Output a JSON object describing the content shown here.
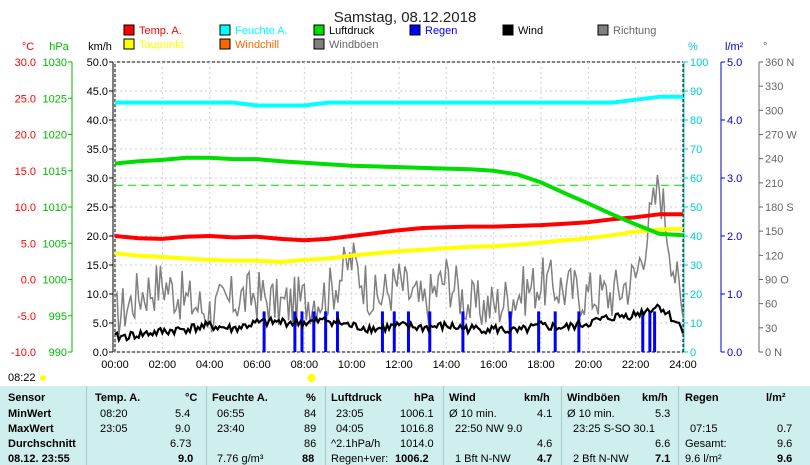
{
  "chart_data": {
    "type": "line",
    "title": "Samstag, 08.12.2018",
    "x_ticks": [
      "00:00",
      "02:00",
      "04:00",
      "06:00",
      "08:00",
      "10:00",
      "12:00",
      "14:00",
      "16:00",
      "18:00",
      "20:00",
      "22:00",
      "24:00"
    ],
    "xlim": [
      0,
      24
    ],
    "left_axes": [
      {
        "unit": "°C",
        "color": "#ff0000",
        "ticks": [
          "30.0",
          "25.0",
          "20.0",
          "15.0",
          "10.0",
          "5.0",
          "0.0",
          "-5.0",
          "-10.0"
        ],
        "range": [
          -10,
          30
        ]
      },
      {
        "unit": "hPa",
        "color": "#00bb00",
        "ticks": [
          "1030",
          "1025",
          "1020",
          "1015",
          "1010",
          "1005",
          "1000",
          "995",
          "990"
        ],
        "range": [
          990,
          1030
        ]
      },
      {
        "unit": "km/h",
        "color": "#000000",
        "ticks": [
          "50.0",
          "45.0",
          "40.0",
          "35.0",
          "30.0",
          "25.0",
          "20.0",
          "15.0",
          "10.0",
          "5.0",
          "0.0"
        ],
        "range": [
          0,
          50
        ]
      }
    ],
    "right_axes": [
      {
        "unit": "%",
        "color": "#00cccc",
        "ticks": [
          "100",
          "90",
          "80",
          "70",
          "60",
          "50",
          "40",
          "30",
          "20",
          "10",
          "0"
        ],
        "range": [
          0,
          100
        ]
      },
      {
        "unit": "l/m²",
        "color": "#0000cc",
        "ticks": [
          "5.0",
          "4.0",
          "3.0",
          "2.0",
          "1.0",
          "0.0"
        ],
        "range": [
          0,
          5
        ]
      },
      {
        "unit": "°",
        "color": "#666666",
        "ticks": [
          "360 N",
          "330",
          "300",
          "270 W",
          "240",
          "210",
          "180 S",
          "150",
          "120",
          "90 O",
          "60",
          "30",
          "0 N"
        ],
        "range": [
          0,
          360
        ]
      }
    ],
    "legend": [
      {
        "name": "Temp. A.",
        "color": "#ff0000"
      },
      {
        "name": "Feuchte A.",
        "color": "#00ffff"
      },
      {
        "name": "Luftdruck",
        "color": "#00dd00"
      },
      {
        "name": "Regen",
        "color": "#0000ff"
      },
      {
        "name": "Wind",
        "color": "#000000"
      },
      {
        "name": "Richtung",
        "color": "#808080"
      },
      {
        "name": "Taupunkt",
        "color": "#ffff00"
      },
      {
        "name": "Windchill",
        "color": "#ff6600"
      },
      {
        "name": "Windböen",
        "color": "#808080"
      }
    ],
    "series": [
      {
        "name": "Temp. A.",
        "axis": "temp",
        "color": "#ff0000",
        "x": [
          0,
          1,
          2,
          3,
          4,
          5,
          6,
          7,
          8,
          9,
          10,
          11,
          12,
          13,
          14,
          15,
          16,
          17,
          18,
          19,
          20,
          21,
          22,
          23,
          24
        ],
        "y": [
          6.0,
          5.7,
          5.6,
          5.9,
          6.0,
          5.8,
          5.9,
          5.6,
          5.4,
          5.6,
          6.0,
          6.4,
          6.8,
          7.1,
          7.2,
          7.3,
          7.3,
          7.4,
          7.5,
          7.7,
          7.9,
          8.3,
          8.6,
          9.0,
          9.0
        ]
      },
      {
        "name": "Taupunkt",
        "axis": "temp",
        "color": "#ffff00",
        "x": [
          0,
          1,
          2,
          3,
          4,
          5,
          6,
          7,
          8,
          9,
          10,
          11,
          12,
          13,
          14,
          15,
          16,
          17,
          18,
          19,
          20,
          21,
          22,
          23,
          24
        ],
        "y": [
          3.6,
          3.3,
          3.1,
          2.9,
          2.7,
          2.6,
          2.6,
          2.4,
          2.7,
          2.9,
          3.3,
          3.6,
          3.9,
          4.1,
          4.3,
          4.5,
          4.6,
          4.8,
          5.1,
          5.4,
          5.7,
          6.1,
          6.6,
          6.9,
          7.0
        ]
      },
      {
        "name": "Feuchte A.",
        "axis": "hum",
        "color": "#00ffff",
        "x": [
          0,
          1,
          2,
          3,
          4,
          5,
          6,
          7,
          8,
          9,
          10,
          11,
          12,
          13,
          14,
          15,
          16,
          17,
          18,
          19,
          20,
          21,
          22,
          23,
          24
        ],
        "y": [
          86,
          86,
          86,
          86,
          86,
          86,
          85,
          85,
          85,
          86,
          86,
          86,
          86,
          86,
          86,
          86,
          86,
          86,
          86,
          86,
          86,
          86,
          87,
          88,
          88
        ]
      },
      {
        "name": "Luftdruck",
        "axis": "press",
        "color": "#00dd00",
        "x": [
          0,
          1,
          2,
          3,
          4,
          5,
          6,
          7,
          8,
          9,
          10,
          11,
          12,
          13,
          14,
          15,
          16,
          17,
          18,
          19,
          20,
          21,
          22,
          23,
          24
        ],
        "y": [
          1016.0,
          1016.3,
          1016.5,
          1016.8,
          1016.8,
          1016.6,
          1016.6,
          1016.3,
          1016.1,
          1015.9,
          1015.7,
          1015.6,
          1015.5,
          1015.4,
          1015.3,
          1015.2,
          1015.0,
          1014.5,
          1013.4,
          1011.9,
          1010.5,
          1009.0,
          1007.6,
          1006.3,
          1006.1
        ]
      },
      {
        "name": "Wind",
        "axis": "wind",
        "color": "#000000",
        "x": [
          0,
          1,
          2,
          3,
          4,
          5,
          6,
          7,
          8,
          9,
          10,
          11,
          12,
          13,
          14,
          15,
          16,
          17,
          18,
          19,
          20,
          21,
          22,
          23,
          24
        ],
        "y": [
          2.5,
          3.0,
          3.5,
          4.0,
          4.5,
          4.0,
          5.0,
          5.2,
          5.0,
          5.5,
          4.5,
          4.0,
          4.5,
          4.2,
          4.5,
          4.0,
          4.0,
          3.5,
          4.5,
          4.2,
          5.0,
          6.0,
          6.5,
          8.0,
          4.0
        ]
      },
      {
        "name": "Windböen",
        "axis": "wind",
        "color": "#808080",
        "x": [
          0,
          1,
          2,
          3,
          4,
          5,
          6,
          7,
          8,
          9,
          10,
          11,
          12,
          13,
          14,
          15,
          16,
          17,
          18,
          19,
          20,
          21,
          22,
          23,
          24
        ],
        "y": [
          6,
          10,
          12,
          9,
          7,
          9,
          10,
          8,
          9,
          10,
          16,
          9,
          12,
          8,
          13,
          8,
          8,
          10,
          12,
          11,
          10,
          10,
          13,
          29,
          6
        ]
      }
    ],
    "regen_bars": {
      "x": [
        6.3,
        7.6,
        7.9,
        8.4,
        8.9,
        9.4,
        11.3,
        11.8,
        12.4,
        13.3,
        14.7,
        16.7,
        17.9,
        18.6,
        19.6,
        22.3,
        22.6,
        22.8
      ],
      "values": [
        0.7,
        0.7,
        0.7,
        0.7,
        0.7,
        0.7,
        0.7,
        0.7,
        0.7,
        0.7,
        0.7,
        0.7,
        0.7,
        0.7,
        0.7,
        0.7,
        0.7,
        0.7
      ]
    },
    "reference_line": {
      "axis": "press",
      "value": 1013.0,
      "color": "#00dd00"
    },
    "time_stamp": "08:22",
    "grid": true
  },
  "stats": {
    "header": {
      "sensor": "Sensor"
    },
    "rows": [
      "MinWert",
      "MaxWert",
      "Durchschnitt",
      "08.12. 23:55"
    ],
    "temp": {
      "label": "Temp. A.",
      "unit": "°C",
      "cells": [
        [
          "08:20",
          "5.4"
        ],
        [
          "23:05",
          "9.0"
        ],
        [
          "",
          "6.73"
        ],
        [
          "",
          "9.0"
        ]
      ]
    },
    "hum": {
      "label": "Feuchte A.",
      "unit": "%",
      "cells": [
        [
          "06:55",
          "84"
        ],
        [
          "23:40",
          "89"
        ],
        [
          "",
          "86"
        ],
        [
          "7.76 g/m³",
          "88"
        ]
      ]
    },
    "press": {
      "label": "Luftdruck",
      "unit": "hPa",
      "cells": [
        [
          "23:05",
          "1006.1"
        ],
        [
          "04:05",
          "1016.8"
        ],
        [
          "^2.1hPa/h",
          "1014.0"
        ],
        [
          "Regen+ver:",
          "1006.2"
        ]
      ]
    },
    "wind": {
      "label": "Wind",
      "unit": "km/h",
      "cells": [
        [
          "Ø 10 min.",
          "4.1"
        ],
        [
          "22:50   NW 9.0",
          ""
        ],
        [
          "",
          "4.6"
        ],
        [
          "1 Bft N-NW",
          "4.7"
        ]
      ]
    },
    "gust": {
      "label": "Windböen",
      "unit": "km/h",
      "cells": [
        [
          "Ø 10 min.",
          "5.3"
        ],
        [
          "23:25  S-SO 30.1",
          ""
        ],
        [
          "",
          "6.6"
        ],
        [
          "2 Bft N-NW",
          "7.1"
        ]
      ]
    },
    "rain": {
      "label": "Regen",
      "unit": "l/m²",
      "cells": [
        [
          "",
          ""
        ],
        [
          "07:15",
          "0.7"
        ],
        [
          "Gesamt:",
          "9.6"
        ],
        [
          "9.6 l/m²",
          "9.6"
        ]
      ]
    }
  }
}
